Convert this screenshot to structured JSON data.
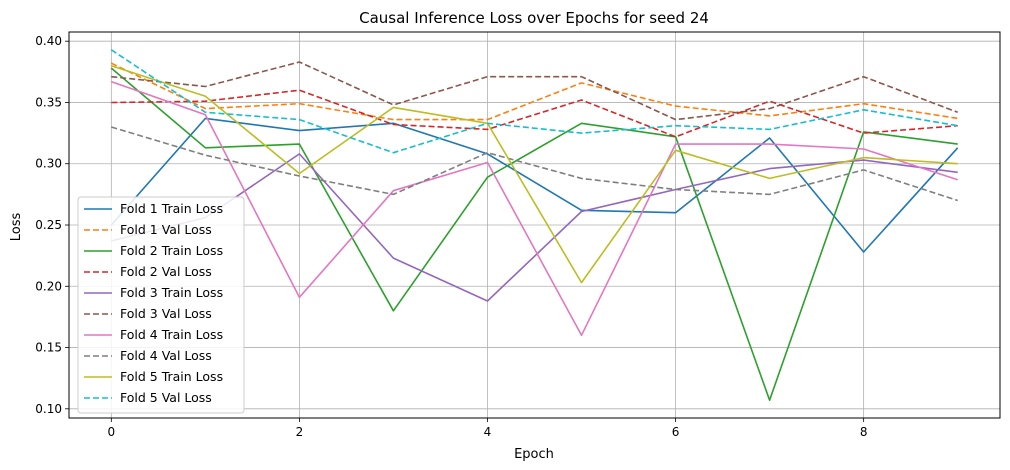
{
  "chart_data": {
    "type": "line",
    "title": "Causal Inference Loss over Epochs for seed 24",
    "xlabel": "Epoch",
    "ylabel": "Loss",
    "x": [
      0,
      1,
      2,
      3,
      4,
      5,
      6,
      7,
      8,
      9
    ],
    "xlim": [
      -0.45,
      9.45
    ],
    "ylim": [
      0.0925,
      0.4075
    ],
    "xticks": [
      0,
      2,
      4,
      6,
      8
    ],
    "yticks": [
      0.1,
      0.15,
      0.2,
      0.25,
      0.3,
      0.35,
      0.4
    ],
    "ytick_labels": [
      "0.10",
      "0.15",
      "0.20",
      "0.25",
      "0.30",
      "0.35",
      "0.40"
    ],
    "grid": true,
    "legend_position": "lower-left",
    "series": [
      {
        "name": "Fold 1 Train Loss",
        "color": "#1f77b4",
        "dash": "solid",
        "values": [
          0.25,
          0.337,
          0.327,
          0.333,
          0.308,
          0.262,
          0.26,
          0.321,
          0.228,
          0.313
        ]
      },
      {
        "name": "Fold 1 Val Loss",
        "color": "#ff7f0e",
        "dash": "dashed",
        "values": [
          0.382,
          0.345,
          0.349,
          0.336,
          0.336,
          0.366,
          0.347,
          0.339,
          0.349,
          0.337
        ]
      },
      {
        "name": "Fold 2 Train Loss",
        "color": "#2ca02c",
        "dash": "solid",
        "values": [
          0.378,
          0.313,
          0.316,
          0.18,
          0.289,
          0.333,
          0.322,
          0.107,
          0.326,
          0.316
        ]
      },
      {
        "name": "Fold 2 Val Loss",
        "color": "#d62728",
        "dash": "dashed",
        "values": [
          0.35,
          0.351,
          0.36,
          0.332,
          0.328,
          0.352,
          0.322,
          0.351,
          0.325,
          0.331
        ]
      },
      {
        "name": "Fold 3 Train Loss",
        "color": "#9467bd",
        "dash": "solid",
        "values": [
          0.237,
          0.256,
          0.308,
          0.223,
          0.188,
          0.261,
          0.279,
          0.296,
          0.303,
          0.293
        ]
      },
      {
        "name": "Fold 3 Val Loss",
        "color": "#8c564b",
        "dash": "dashed",
        "values": [
          0.371,
          0.363,
          0.383,
          0.348,
          0.371,
          0.371,
          0.336,
          0.345,
          0.371,
          0.342
        ]
      },
      {
        "name": "Fold 4 Train Loss",
        "color": "#e377c2",
        "dash": "solid",
        "values": [
          0.367,
          0.34,
          0.191,
          0.278,
          0.301,
          0.16,
          0.316,
          0.316,
          0.312,
          0.287
        ]
      },
      {
        "name": "Fold 4 Val Loss",
        "color": "#7f7f7f",
        "dash": "dashed",
        "values": [
          0.33,
          0.307,
          0.29,
          0.275,
          0.309,
          0.288,
          0.279,
          0.275,
          0.295,
          0.27
        ]
      },
      {
        "name": "Fold 5 Train Loss",
        "color": "#bcbd22",
        "dash": "solid",
        "values": [
          0.38,
          0.355,
          0.292,
          0.346,
          0.333,
          0.203,
          0.311,
          0.288,
          0.305,
          0.3
        ]
      },
      {
        "name": "Fold 5 Val Loss",
        "color": "#17becf",
        "dash": "dashed",
        "values": [
          0.393,
          0.342,
          0.336,
          0.309,
          0.333,
          0.325,
          0.331,
          0.328,
          0.344,
          0.331
        ]
      }
    ]
  }
}
